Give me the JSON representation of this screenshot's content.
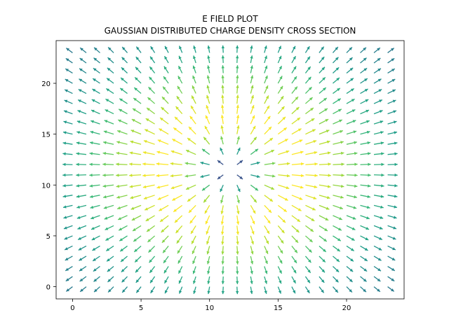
{
  "chart_data": {
    "type": "quiver",
    "title": "E FIELD PLOT",
    "subtitle": "GAUSSIAN DISTRIBUTED CHARGE DENSITY CROSS SECTION",
    "xlabel": "",
    "ylabel": "",
    "xlim": [
      -1.2,
      24.2
    ],
    "ylim": [
      -1.2,
      24.2
    ],
    "xticks": [
      0,
      5,
      10,
      15,
      20
    ],
    "yticks": [
      0,
      5,
      10,
      15,
      20
    ],
    "grid": false,
    "legend": "none",
    "colormap": "viridis",
    "field": {
      "grid_x": [
        0,
        23,
        1
      ],
      "grid_y": [
        0,
        23,
        1
      ],
      "source_center": [
        11.5,
        11.5
      ],
      "gaussian_sigma": 3.0,
      "direction": "radially outward from source_center"
    }
  }
}
